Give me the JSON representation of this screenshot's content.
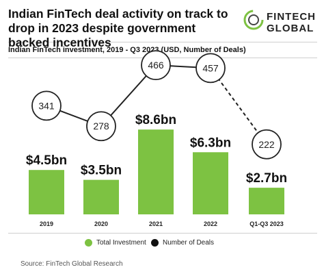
{
  "header": {
    "title": "Indian FinTech deal activity on track to drop in 2023 despite government backed incentives",
    "subtitle": "Indian FinTech investment, 2019 - Q3 2023  (USD, Number of Deals)"
  },
  "logo": {
    "line1": "FINTECH",
    "line2": "GLOBAL"
  },
  "legend": {
    "investment": "Total Investment",
    "deals": "Number of Deals"
  },
  "source": "Source: FinTech Global Research",
  "colors": {
    "bar": "#7dc242",
    "line": "#222222",
    "circle_fill": "#ffffff"
  },
  "chart_data": {
    "type": "bar",
    "categories": [
      "2019",
      "2020",
      "2021",
      "2022",
      "Q1-Q3 2023"
    ],
    "series": [
      {
        "name": "Total Investment",
        "type": "bar",
        "values": [
          4.5,
          3.5,
          8.6,
          6.3,
          2.7
        ],
        "labels": [
          "$4.5bn",
          "$3.5bn",
          "$8.6bn",
          "$6.3bn",
          "$2.7bn"
        ]
      },
      {
        "name": "Number of Deals",
        "type": "line",
        "values": [
          341,
          278,
          466,
          457,
          222
        ],
        "labels": [
          "341",
          "278",
          "466",
          "457",
          "222"
        ],
        "dashed_last_segment": true
      }
    ],
    "legend_position": "bottom",
    "grid": false
  }
}
